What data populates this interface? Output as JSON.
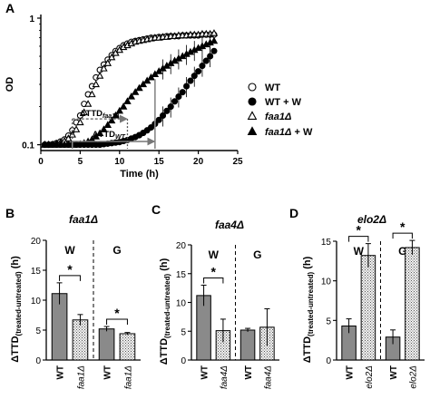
{
  "chart_data": [
    {
      "id": "A",
      "panel_label": "A",
      "type": "scatter",
      "xlabel": "Time (h)",
      "ylabel": "OD",
      "xlim": [
        0,
        25
      ],
      "ylim": [
        0.1,
        1
      ],
      "y_scale": "log",
      "x_ticks": [
        "0",
        "5",
        "10",
        "15",
        "20",
        "25"
      ],
      "y_ticks": [
        "1",
        "0.1"
      ],
      "legend_position": "right",
      "series": [
        {
          "name": "WT",
          "marker": "open-circle",
          "x": [
            0.5,
            1,
            1.5,
            2,
            2.5,
            3,
            3.5,
            4,
            4.5,
            5,
            5.5,
            6,
            6.5,
            7,
            7.5,
            8,
            8.5,
            9,
            9.5,
            10,
            10.5,
            11,
            11.5,
            12,
            12.5,
            13,
            13.5,
            14,
            14.5,
            15,
            15.5,
            16,
            16.5,
            17,
            17.5,
            18,
            18.5,
            19,
            19.5,
            20,
            20.5,
            21,
            21.5,
            22
          ],
          "y": [
            0.1,
            0.1,
            0.101,
            0.103,
            0.106,
            0.11,
            0.118,
            0.13,
            0.15,
            0.17,
            0.21,
            0.25,
            0.29,
            0.34,
            0.39,
            0.43,
            0.47,
            0.51,
            0.55,
            0.58,
            0.61,
            0.63,
            0.65,
            0.66,
            0.67,
            0.68,
            0.69,
            0.7,
            0.7,
            0.71,
            0.71,
            0.72,
            0.72,
            0.72,
            0.72,
            0.73,
            0.73,
            0.73,
            0.73,
            0.73,
            0.74,
            0.74,
            0.74,
            0.74
          ]
        },
        {
          "name": "WT + W",
          "marker": "filled-circle",
          "x": [
            0.5,
            1,
            1.5,
            2,
            2.5,
            3,
            3.5,
            4,
            4.5,
            5,
            5.5,
            6,
            6.5,
            7,
            7.5,
            8,
            8.5,
            9,
            9.5,
            10,
            10.5,
            11,
            11.5,
            12,
            12.5,
            13,
            13.5,
            14,
            14.5,
            15,
            15.5,
            16,
            16.5,
            17,
            17.5,
            18,
            18.5,
            19,
            19.5,
            20,
            20.5,
            21,
            21.5,
            22
          ],
          "y": [
            0.1,
            0.1,
            0.1,
            0.1,
            0.1,
            0.1,
            0.1,
            0.1,
            0.1,
            0.1,
            0.1,
            0.1,
            0.1,
            0.1,
            0.1,
            0.101,
            0.102,
            0.103,
            0.104,
            0.105,
            0.107,
            0.109,
            0.112,
            0.115,
            0.119,
            0.124,
            0.13,
            0.137,
            0.146,
            0.157,
            0.17,
            0.185,
            0.2,
            0.22,
            0.24,
            0.26,
            0.29,
            0.32,
            0.35,
            0.38,
            0.42,
            0.46,
            0.5,
            0.55
          ]
        },
        {
          "name": "faa1Δ",
          "marker": "open-triangle",
          "x": [
            0.5,
            1,
            1.5,
            2,
            2.5,
            3,
            3.5,
            4,
            4.5,
            5,
            5.5,
            6,
            6.5,
            7,
            7.5,
            8,
            8.5,
            9,
            9.5,
            10,
            10.5,
            11,
            11.5,
            12,
            12.5,
            13,
            13.5,
            14,
            14.5,
            15,
            15.5,
            16,
            16.5,
            17,
            17.5,
            18,
            18.5,
            19,
            19.5,
            20,
            20.5,
            21,
            21.5,
            22
          ],
          "y": [
            0.1,
            0.1,
            0.1,
            0.102,
            0.104,
            0.107,
            0.112,
            0.12,
            0.132,
            0.15,
            0.18,
            0.21,
            0.25,
            0.3,
            0.35,
            0.4,
            0.44,
            0.49,
            0.53,
            0.56,
            0.59,
            0.61,
            0.63,
            0.65,
            0.66,
            0.67,
            0.68,
            0.69,
            0.7,
            0.7,
            0.71,
            0.71,
            0.72,
            0.72,
            0.73,
            0.73,
            0.73,
            0.74,
            0.74,
            0.74,
            0.75,
            0.75,
            0.75,
            0.76
          ]
        },
        {
          "name": "faa1Δ + W",
          "marker": "filled-triangle",
          "x": [
            0.5,
            1,
            1.5,
            2,
            2.5,
            3,
            3.5,
            4,
            4.5,
            5,
            5.5,
            6,
            6.5,
            7,
            7.5,
            8,
            8.5,
            9,
            9.5,
            10,
            10.5,
            11,
            11.5,
            12,
            12.5,
            13,
            13.5,
            14,
            14.5,
            15,
            15.5,
            16,
            16.5,
            17,
            17.5,
            18,
            18.5,
            19,
            19.5,
            20,
            20.5,
            21,
            21.5,
            22
          ],
          "y": [
            0.1,
            0.1,
            0.1,
            0.1,
            0.1,
            0.1,
            0.1,
            0.1,
            0.1,
            0.101,
            0.103,
            0.106,
            0.11,
            0.116,
            0.123,
            0.132,
            0.143,
            0.155,
            0.17,
            0.185,
            0.2,
            0.22,
            0.24,
            0.26,
            0.28,
            0.3,
            0.32,
            0.34,
            0.36,
            0.38,
            0.4,
            0.42,
            0.44,
            0.46,
            0.48,
            0.5,
            0.52,
            0.54,
            0.56,
            0.58,
            0.6,
            0.62,
            0.64,
            0.66
          ]
        }
      ],
      "annotations": [
        {
          "text": "ΔTTD",
          "sub": "faa1Δ",
          "x1": 4,
          "x2": 11,
          "y": 0.16
        },
        {
          "text": "ΔTTD",
          "sub": "WT",
          "x1": 4,
          "x2": 14.5,
          "y": 0.1
        }
      ]
    },
    {
      "id": "B",
      "panel_label": "B",
      "type": "bar",
      "title": "faa1Δ",
      "ylabel": "ΔTTD",
      "ylabel_sub": "(treated-untreated)",
      "ylabel_unit": "(h)",
      "ylim": [
        0,
        20
      ],
      "y_ticks": [
        "0",
        "5",
        "10",
        "15",
        "20"
      ],
      "groups": [
        "W",
        "G"
      ],
      "categories": [
        "WT",
        "faa1Δ",
        "WT",
        "faa1Δ"
      ],
      "values": [
        11.1,
        6.7,
        5.2,
        4.4
      ],
      "errors": [
        1.8,
        0.9,
        0.4,
        0.2
      ],
      "significance": [
        {
          "between": [
            0,
            1
          ],
          "label": "*"
        },
        {
          "between": [
            2,
            3
          ],
          "label": "*"
        }
      ]
    },
    {
      "id": "C",
      "panel_label": "C",
      "type": "bar",
      "title": "faa4Δ",
      "ylabel": "ΔTTD",
      "ylabel_sub": "(treated-untreated)",
      "ylabel_unit": "(h)",
      "ylim": [
        0,
        20
      ],
      "y_ticks": [
        "0",
        "5",
        "10",
        "15",
        "20"
      ],
      "groups": [
        "W",
        "G"
      ],
      "categories": [
        "WT",
        "faa4Δ",
        "WT",
        "faa4Δ"
      ],
      "values": [
        11.2,
        5.1,
        5.2,
        5.7
      ],
      "errors": [
        1.8,
        2.0,
        0.3,
        3.2
      ],
      "significance": [
        {
          "between": [
            0,
            1
          ],
          "label": "*"
        }
      ]
    },
    {
      "id": "D",
      "panel_label": "D",
      "type": "bar",
      "title": "elo2Δ",
      "ylabel": "ΔTTD",
      "ylabel_sub": "(treated-untreated)",
      "ylabel_unit": "(h)",
      "ylim": [
        0,
        15
      ],
      "y_ticks": [
        "0",
        "5",
        "10",
        "15"
      ],
      "groups": [
        "W",
        "G"
      ],
      "categories": [
        "WT",
        "elo2Δ",
        "WT",
        "elo2Δ"
      ],
      "values": [
        4.3,
        13.2,
        2.9,
        14.2
      ],
      "errors": [
        0.9,
        1.5,
        0.9,
        0.9
      ],
      "significance": [
        {
          "between": [
            0,
            1
          ],
          "label": "*"
        },
        {
          "between": [
            2,
            3
          ],
          "label": "*"
        }
      ]
    }
  ]
}
